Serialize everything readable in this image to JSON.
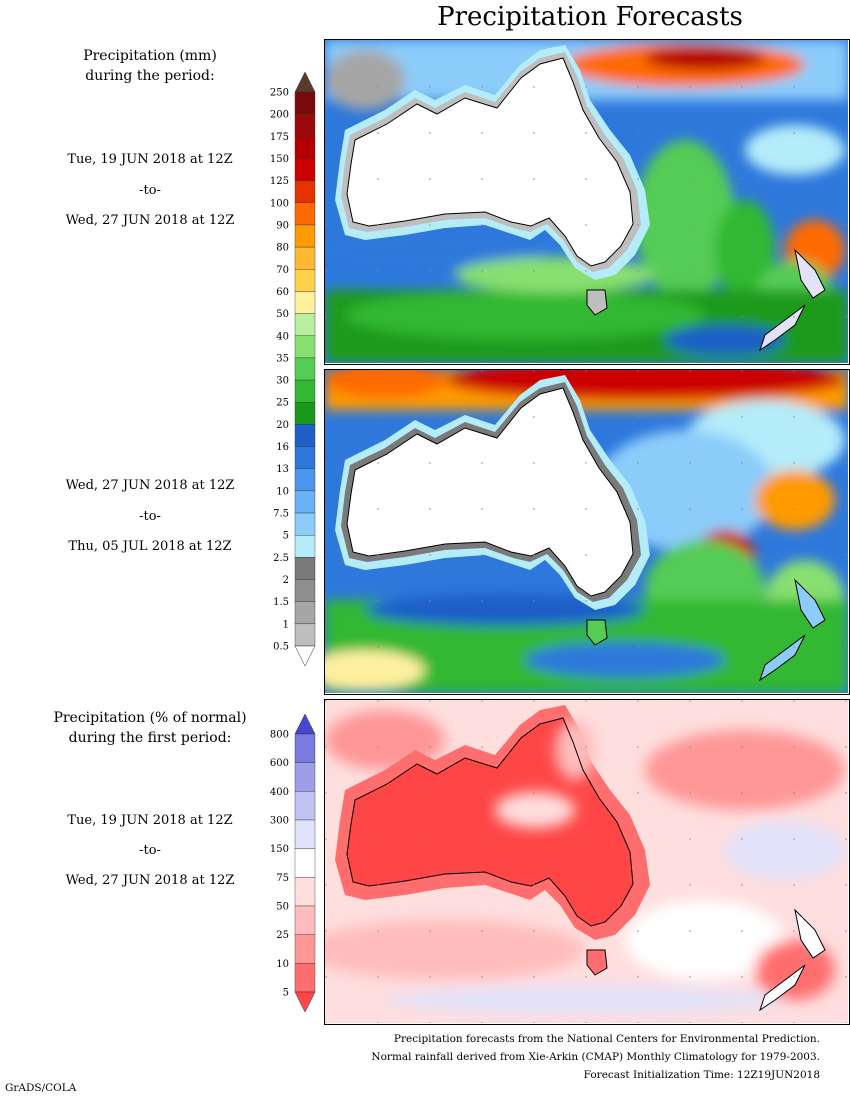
{
  "title": "Precipitation Forecasts",
  "legend_mm": {
    "heading_line1": "Precipitation (mm)",
    "heading_line2": "during the period:",
    "levels": [
      "250",
      "200",
      "175",
      "150",
      "125",
      "100",
      "90",
      "80",
      "70",
      "60",
      "50",
      "40",
      "35",
      "30",
      "25",
      "20",
      "16",
      "13",
      "10",
      "7.5",
      "5",
      "2.5",
      "2",
      "1.5",
      "1",
      "0.5"
    ],
    "colors": [
      "#5a3a2e",
      "#7a0a0a",
      "#9a0a0a",
      "#b40000",
      "#cc0000",
      "#e53300",
      "#ff6a00",
      "#ff9a00",
      "#ffb833",
      "#ffd24a",
      "#fff0a0",
      "#b8f0a0",
      "#88e070",
      "#55cc55",
      "#33b833",
      "#1a9a1a",
      "#1e5fc8",
      "#2e78dc",
      "#4a96ee",
      "#6ab2f6",
      "#8cccfa",
      "#b4ecfa",
      "#7a7a7a",
      "#8e8e8e",
      "#a6a6a6",
      "#bebebe",
      "#ffffff"
    ]
  },
  "period1": {
    "start": "Tue, 19 JUN 2018 at 12Z",
    "to": "-to-",
    "end": "Wed, 27 JUN 2018 at 12Z"
  },
  "period2": {
    "start": "Wed, 27 JUN 2018 at 12Z",
    "to": "-to-",
    "end": "Thu, 05 JUL 2018 at 12Z"
  },
  "legend_pct": {
    "heading_line1": "Precipitation (% of normal)",
    "heading_line2": "during the first period:",
    "levels": [
      "800",
      "600",
      "400",
      "300",
      "150",
      "75",
      "50",
      "25",
      "10",
      "5"
    ],
    "colors": [
      "#4646d2",
      "#7a7ae0",
      "#9e9ee8",
      "#c2c2f2",
      "#e2e2fa",
      "#ffffff",
      "#ffdede",
      "#ffbcbc",
      "#ff9696",
      "#ff6e6e",
      "#ff4646"
    ]
  },
  "period3": {
    "start": "Tue, 19 JUN 2018 at 12Z",
    "to": "-to-",
    "end": "Wed, 27 JUN 2018 at 12Z"
  },
  "footer": {
    "line1": "Precipitation forecasts from the National Centers for Environmental Prediction.",
    "line2": "Normal rainfall derived from Xie-Arkin (CMAP) Monthly Climatology for 1979-2003.",
    "line3": "Forecast Initialization Time: 12Z19JUN2018"
  },
  "credit": "GrADS/COLA"
}
